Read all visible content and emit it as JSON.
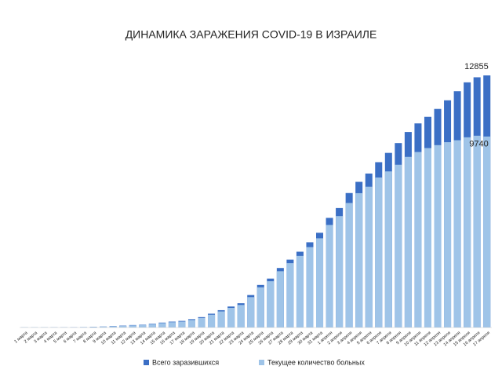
{
  "chart_data": {
    "type": "bar",
    "title": "ДИНАМИКА ЗАРАЖЕНИЯ COVID-19 В ИЗРАИЛЕ",
    "categories": [
      "1 марта",
      "2 марта",
      "3 марта",
      "4 марта",
      "5 марта",
      "6 марта",
      "7 марта",
      "8 марта",
      "9 марта",
      "10 марта",
      "11 марта",
      "12 марта",
      "13 марта",
      "14 марта",
      "15 марта",
      "16 марта",
      "17 марта",
      "18 марта",
      "19 марта",
      "20 марта",
      "21 марта",
      "22 марта",
      "23 марта",
      "24 марта",
      "25 марта",
      "26 марта",
      "27 марта",
      "28 марта",
      "29 марта",
      "30 марта",
      "31 марта",
      "1 апреля",
      "2 апреля",
      "3 апреля",
      "4 апреля",
      "5 апреля",
      "6 апреля",
      "7 апреля",
      "8 апреля",
      "9 апреля",
      "10 апреля",
      "11 апреля",
      "12 апреля",
      "13 апреля",
      "14 апреля",
      "15 апреля",
      "16 апреля",
      "17 апреля"
    ],
    "series": [
      {
        "name": "Всего заразившихся",
        "color": "#3b6fc5",
        "values": [
          10,
          10,
          12,
          15,
          17,
          21,
          25,
          39,
          50,
          75,
          97,
          126,
          143,
          193,
          250,
          300,
          337,
          427,
          529,
          705,
          883,
          1071,
          1238,
          1656,
          2170,
          2495,
          3035,
          3460,
          3865,
          4347,
          4831,
          5591,
          6092,
          6857,
          7428,
          7851,
          8430,
          8904,
          9404,
          9968,
          10408,
          10743,
          11145,
          11586,
          12046,
          12501,
          12758,
          12855
        ]
      },
      {
        "name": "Текущее количество больных",
        "color": "#9fc4e8",
        "values": [
          8,
          8,
          10,
          12,
          14,
          17,
          20,
          32,
          43,
          64,
          82,
          110,
          125,
          170,
          225,
          270,
          300,
          385,
          480,
          650,
          820,
          1000,
          1150,
          1550,
          2050,
          2360,
          2870,
          3280,
          3650,
          4100,
          4550,
          5230,
          5680,
          6350,
          6850,
          7180,
          7650,
          7960,
          8300,
          8700,
          8950,
          9150,
          9300,
          9450,
          9550,
          9700,
          9780,
          9740
        ]
      }
    ],
    "legend": "bottom"
  }
}
